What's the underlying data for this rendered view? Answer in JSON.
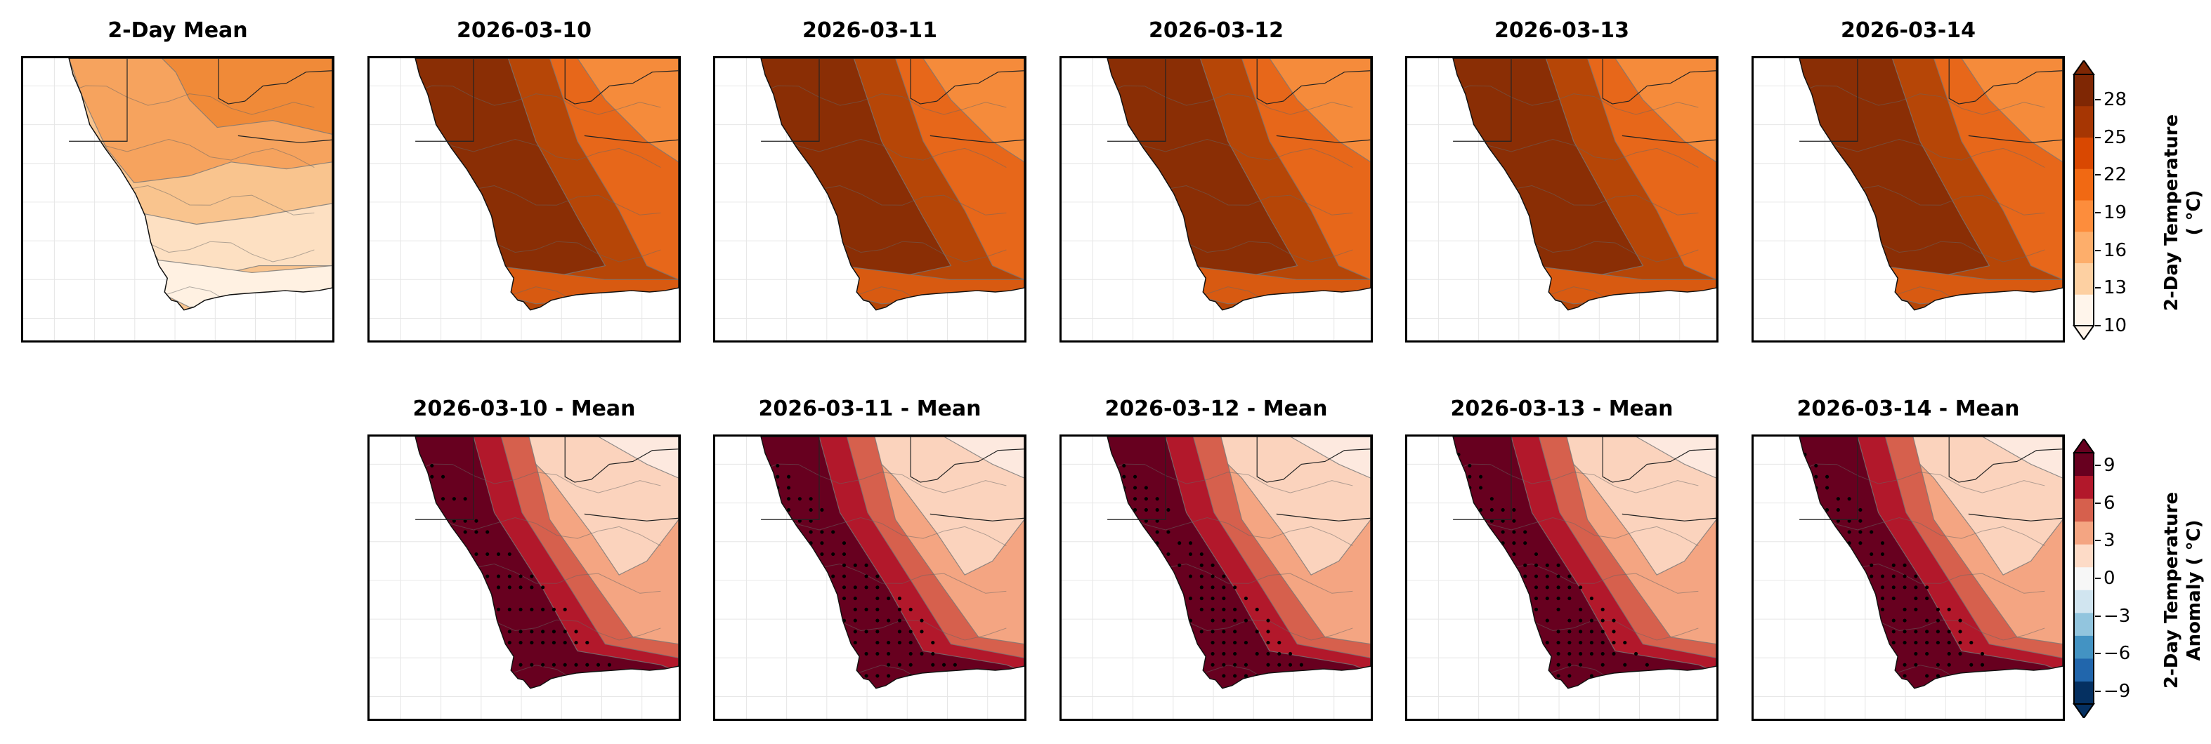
{
  "chart_data": [
    {
      "type": "heatmap",
      "title": "2-Day Mean",
      "row": "temperature",
      "colorbar_label": "2-Day Temperature\n($^\\circ$C)"
    },
    {
      "type": "heatmap",
      "title": "2026-03-10",
      "row": "temperature"
    },
    {
      "type": "heatmap",
      "title": "2026-03-11",
      "row": "temperature"
    },
    {
      "type": "heatmap",
      "title": "2026-03-12",
      "row": "temperature"
    },
    {
      "type": "heatmap",
      "title": "2026-03-13",
      "row": "temperature"
    },
    {
      "type": "heatmap",
      "title": "2026-03-14",
      "row": "temperature"
    },
    {
      "type": "heatmap",
      "title": "2026-03-10 - Mean",
      "row": "anomaly"
    },
    {
      "type": "heatmap",
      "title": "2026-03-11 - Mean",
      "row": "anomaly"
    },
    {
      "type": "heatmap",
      "title": "2026-03-12 - Mean",
      "row": "anomaly"
    },
    {
      "type": "heatmap",
      "title": "2026-03-13 - Mean",
      "row": "anomaly"
    },
    {
      "type": "heatmap",
      "title": "2026-03-14 - Mean",
      "row": "anomaly"
    }
  ],
  "colorbars": {
    "temperature": {
      "label_line1": "2-Day Temperature",
      "label_line2": "( °C)",
      "range": [
        10,
        30
      ],
      "ticks": [
        "10",
        "13",
        "16",
        "19",
        "22",
        "25",
        "28"
      ],
      "colors": [
        "#fff5eb",
        "#fdd0a2",
        "#fdae6b",
        "#fd8d3c",
        "#f16913",
        "#d94801",
        "#a63603",
        "#7f2704"
      ]
    },
    "anomaly": {
      "label_line1": "2-Day Temperature",
      "label_line2": "Anomaly ( °C)",
      "range": [
        -10,
        10
      ],
      "ticks": [
        "−9",
        "−6",
        "−3",
        "0",
        "3",
        "6",
        "9"
      ],
      "colors": [
        "#053061",
        "#2166ac",
        "#4393c3",
        "#92c5de",
        "#d1e5f0",
        "#f7f7f7",
        "#fddbc7",
        "#f4a582",
        "#d6604d",
        "#b2182b",
        "#67001f"
      ]
    }
  }
}
